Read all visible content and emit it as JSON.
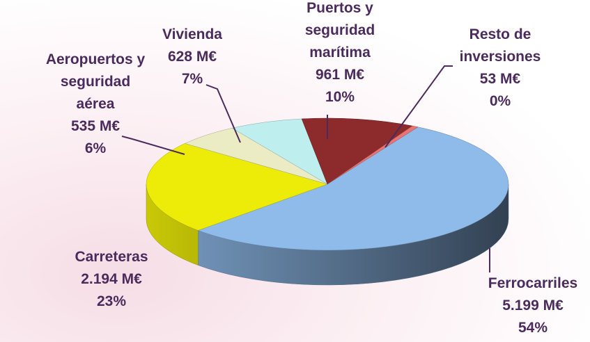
{
  "chart_data": {
    "type": "pie3d",
    "categories": [
      "Ferrocarriles",
      "Carreteras",
      "Aeropuertos y\nseguridad\naérea",
      "Vivienda",
      "Puertos y\nseguridad\nmarítima",
      "Resto de\ninversiones"
    ],
    "values": [
      5199,
      2194,
      535,
      628,
      961,
      53
    ],
    "value_labels": [
      "5.199 M€",
      "2.194 M€",
      "535 M€",
      "628 M€",
      "961 M€",
      "53 M€"
    ],
    "percent_labels": [
      "54%",
      "23%",
      "6%",
      "7%",
      "10%",
      "0%"
    ],
    "colors": [
      "#8fbbea",
      "#ecec08",
      "#ebebc4",
      "#bfeeee",
      "#8c2a2c",
      "#e87474"
    ]
  }
}
